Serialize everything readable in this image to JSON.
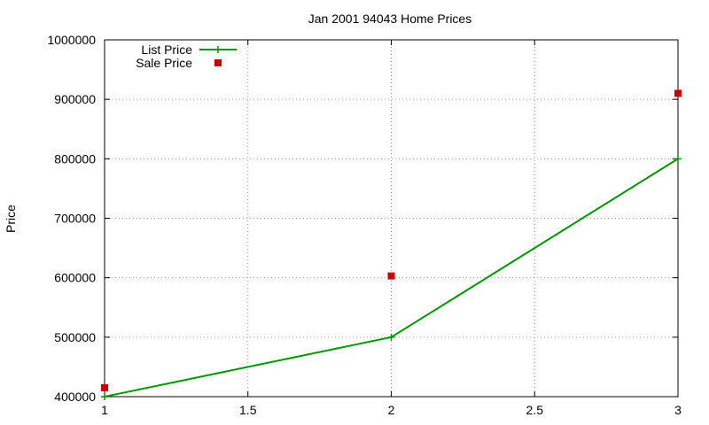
{
  "chart_data": {
    "type": "line",
    "title": "Jan 2001 94043 Home Prices",
    "xlabel": "",
    "ylabel": "Price",
    "xlim": [
      1,
      3
    ],
    "ylim": [
      400000,
      1000000
    ],
    "x_ticks": [
      1,
      1.5,
      2,
      2.5,
      3
    ],
    "x_tick_labels": [
      "1",
      "1.5",
      "2",
      "2.5",
      "3"
    ],
    "y_ticks": [
      400000,
      500000,
      600000,
      700000,
      800000,
      900000,
      1000000
    ],
    "y_tick_labels": [
      "400000",
      "500000",
      "600000",
      "700000",
      "800000",
      "900000",
      "1000000"
    ],
    "grid": true,
    "legend_position": "top-left",
    "series": [
      {
        "name": "List Price",
        "style": "line+cross",
        "color": "#009900",
        "x": [
          1,
          2,
          3
        ],
        "y": [
          400000,
          500000,
          800000
        ]
      },
      {
        "name": "Sale Price",
        "style": "square",
        "color": "#cc0000",
        "x": [
          1,
          2,
          3
        ],
        "y": [
          415000,
          603000,
          910000
        ]
      }
    ]
  }
}
